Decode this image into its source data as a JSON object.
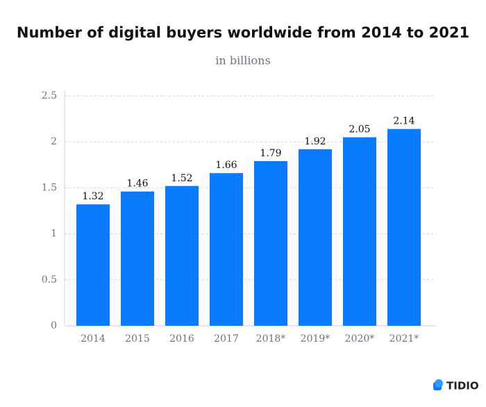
{
  "chart_data": {
    "type": "bar",
    "title": "Number of digital buyers worldwide from 2014 to 2021",
    "subtitle": "in billions",
    "categories": [
      "2014",
      "2015",
      "2016",
      "2017",
      "2018*",
      "2019*",
      "2020*",
      "2021*"
    ],
    "values": [
      1.32,
      1.46,
      1.52,
      1.66,
      1.79,
      1.92,
      2.05,
      2.14
    ],
    "color": "#0a7bff",
    "ylim": [
      0,
      2.5
    ],
    "yticks": [
      0,
      0.5,
      1,
      1.5,
      2,
      2.5
    ],
    "grid": true
  },
  "brand": "TIDIO"
}
